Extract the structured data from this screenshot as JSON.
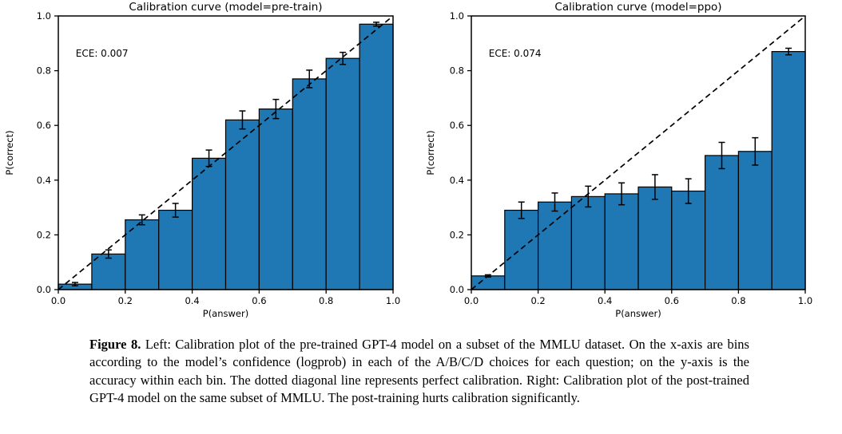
{
  "page": {
    "background_color": "#ffffff",
    "text_color": "#000000"
  },
  "caption": {
    "label": "Figure 8.",
    "text": "Left: Calibration plot of the pre-trained GPT-4 model on a subset of the MMLU dataset. On the x-axis are bins according to the model’s confidence (logprob) in each of the A/B/C/D choices for each question; on the y-axis is the accuracy within each bin. The dotted diagonal line represents perfect calibration. Right: Calibration plot of the post-trained GPT-4 model on the same subset of MMLU. The post-training hurts calibration significantly."
  },
  "chart_data": [
    {
      "type": "bar",
      "title": "Calibration curve (model=pre-train)",
      "annotation": "ECE: 0.007",
      "xlabel": "P(answer)",
      "ylabel": "P(correct)",
      "xlim": [
        0.0,
        1.0
      ],
      "ylim": [
        0.0,
        1.0
      ],
      "xticks": [
        0.0,
        0.2,
        0.4,
        0.6,
        0.8,
        1.0
      ],
      "yticks": [
        0.0,
        0.2,
        0.4,
        0.6,
        0.8,
        1.0
      ],
      "bin_edges": [
        0.0,
        0.1,
        0.2,
        0.3,
        0.4,
        0.5,
        0.6,
        0.7,
        0.8,
        0.9,
        1.0
      ],
      "values": [
        0.02,
        0.13,
        0.255,
        0.29,
        0.48,
        0.62,
        0.66,
        0.77,
        0.845,
        0.97
      ],
      "errors": [
        0.006,
        0.015,
        0.018,
        0.025,
        0.03,
        0.033,
        0.035,
        0.032,
        0.022,
        0.007
      ],
      "diagonal_line": "y=x dashed (perfect calibration)",
      "bar_color": "#1f77b4",
      "bar_edge_color": "#000000",
      "grid": false,
      "legend": null
    },
    {
      "type": "bar",
      "title": "Calibration curve (model=ppo)",
      "annotation": "ECE: 0.074",
      "xlabel": "P(answer)",
      "ylabel": "P(correct)",
      "xlim": [
        0.0,
        1.0
      ],
      "ylim": [
        0.0,
        1.0
      ],
      "xticks": [
        0.0,
        0.2,
        0.4,
        0.6,
        0.8,
        1.0
      ],
      "yticks": [
        0.0,
        0.2,
        0.4,
        0.6,
        0.8,
        1.0
      ],
      "bin_edges": [
        0.0,
        0.1,
        0.2,
        0.3,
        0.4,
        0.5,
        0.6,
        0.7,
        0.8,
        0.9,
        1.0
      ],
      "values": [
        0.05,
        0.29,
        0.32,
        0.34,
        0.35,
        0.375,
        0.36,
        0.49,
        0.505,
        0.87
      ],
      "errors": [
        0.004,
        0.03,
        0.033,
        0.038,
        0.04,
        0.045,
        0.045,
        0.048,
        0.05,
        0.012
      ],
      "diagonal_line": "y=x dashed (perfect calibration)",
      "bar_color": "#1f77b4",
      "bar_edge_color": "#000000",
      "grid": false,
      "legend": null
    }
  ]
}
